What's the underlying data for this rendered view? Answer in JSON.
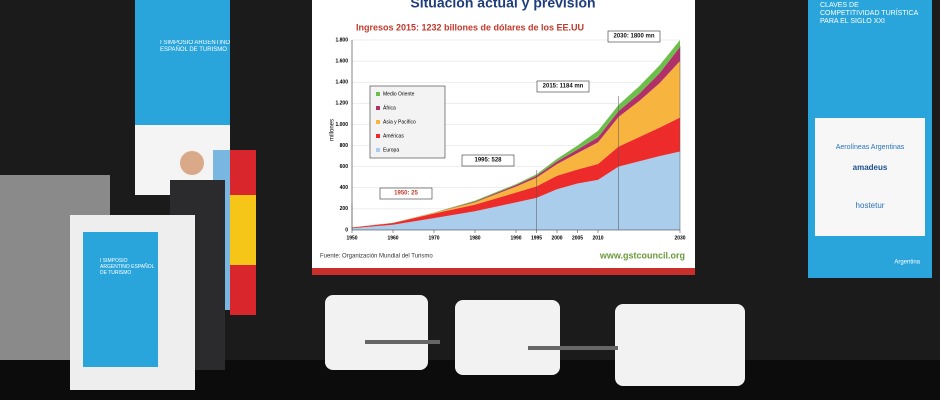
{
  "slide": {
    "title": "Situación actual y previsión",
    "chart_data": {
      "type": "area",
      "title": "Ingresos 2015: 1232 billones de dólares de los EE.UU",
      "y_label": "millones",
      "x": [
        1950,
        1960,
        1970,
        1980,
        1990,
        1995,
        2000,
        2005,
        2010,
        2015,
        2020,
        2025,
        2030
      ],
      "series": [
        {
          "name": "Medio Oriente",
          "color": "#6cbf4a",
          "values": [
            0,
            1,
            2,
            8,
            9,
            14,
            24,
            37,
            61,
            58,
            70,
            75,
            65
          ]
        },
        {
          "name": "África",
          "color": "#b0306a",
          "values": [
            0.5,
            1,
            2,
            7,
            15,
            19,
            26,
            35,
            49,
            56,
            70,
            95,
            134
          ]
        },
        {
          "name": "Asia y Pacífico",
          "color": "#f7b43e",
          "values": [
            0.5,
            1,
            6,
            23,
            56,
            82,
            110,
            155,
            205,
            280,
            340,
            420,
            535
          ]
        },
        {
          "name": "Américas",
          "color": "#ee2b2b",
          "values": [
            7,
            16,
            43,
            62,
            93,
            109,
            128,
            133,
            150,
            190,
            230,
            270,
            322
          ]
        },
        {
          "name": "Europa",
          "color": "#a9cdea",
          "values": [
            17,
            50,
            113,
            178,
            262,
            304,
            386,
            440,
            475,
            600,
            650,
            700,
            744
          ]
        }
      ],
      "xlim": [
        1950,
        2030
      ],
      "ylim": [
        0,
        1800
      ],
      "xticks": [
        1950,
        1960,
        1970,
        1980,
        1990,
        1995,
        2000,
        2005,
        2010,
        2030
      ],
      "yticks": [
        0,
        200,
        400,
        600,
        800,
        {
          "value": 1000,
          "label": "1.000"
        },
        {
          "value": 1200,
          "label": "1.200"
        },
        {
          "value": 1400,
          "label": "1.400"
        },
        {
          "value": 1600,
          "label": "1.600"
        },
        {
          "value": 1800,
          "label": "1.800"
        }
      ],
      "annotations": [
        "2030: 1800 mn",
        "2015: 1184 mn",
        "1995: 528",
        "1950: 25"
      ]
    },
    "source": "Fuente: Organización Mundial del Turismo",
    "website": "www.gstcouncil.org"
  },
  "left_banner": "I SIMPOSIO ARGENTINO ESPAÑOL DE TURISMO",
  "right_banner": {
    "title": "CLAVES DE COMPETITIVIDAD TURÍSTICA PARA EL SIGLO XXI",
    "sponsors": [
      "Aerolíneas Argentinas",
      "amadeus",
      "hostetur"
    ],
    "footer": "Argentina"
  },
  "podium": "I SIMPOSIO ARGENTINO ESPAÑOL DE TURISMO"
}
